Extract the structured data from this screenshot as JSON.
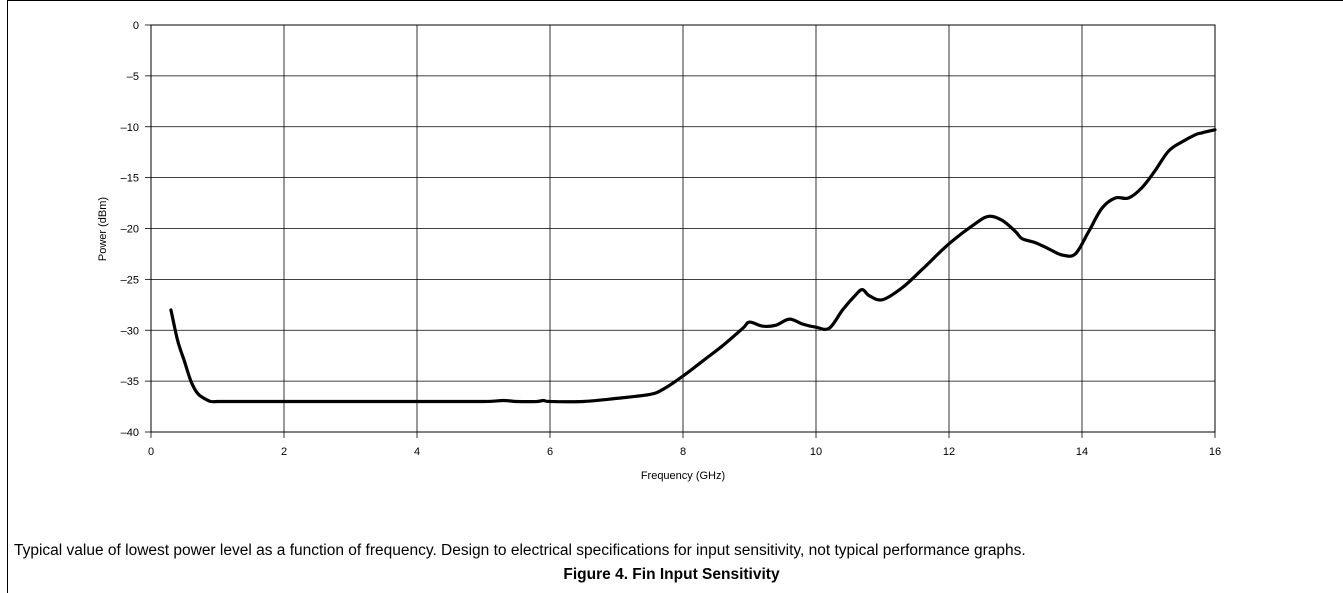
{
  "chart_data": {
    "type": "line",
    "xlabel": "Frequency (GHz)",
    "ylabel": "Power (dBm)",
    "xlim": [
      0,
      16
    ],
    "ylim": [
      -40,
      0
    ],
    "xticks": [
      0,
      2,
      4,
      6,
      8,
      10,
      12,
      14,
      16
    ],
    "yticks": [
      0,
      -5,
      -10,
      -15,
      -20,
      -25,
      -30,
      -35,
      -40
    ],
    "ytick_labels": [
      "0",
      "–5",
      "–10",
      "–15",
      "–20",
      "–25",
      "–30",
      "–35",
      "–40"
    ],
    "grid": true,
    "line_color": "#000000",
    "series": [
      {
        "x": [
          0.3,
          0.4,
          0.5,
          0.6,
          0.7,
          0.8,
          0.9,
          1.0,
          1.1,
          1.5,
          2,
          3,
          4,
          5,
          5.3,
          5.5,
          5.8,
          5.9,
          6.0,
          6.5,
          7.0,
          7.5,
          7.7,
          8.0,
          8.3,
          8.6,
          8.9,
          9.0,
          9.2,
          9.4,
          9.6,
          9.8,
          10.0,
          10.2,
          10.4,
          10.6,
          10.7,
          10.8,
          11.0,
          11.3,
          11.6,
          12.0,
          12.4,
          12.6,
          12.8,
          13.0,
          13.1,
          13.3,
          13.5,
          13.7,
          13.9,
          14.1,
          14.3,
          14.5,
          14.7,
          14.9,
          15.1,
          15.3,
          15.5,
          15.7,
          15.8,
          16.0
        ],
        "y": [
          -28,
          -31,
          -33,
          -35,
          -36.2,
          -36.7,
          -37.0,
          -37.0,
          -37.0,
          -37.0,
          -37.0,
          -37.0,
          -37.0,
          -37.0,
          -36.9,
          -37.0,
          -37.0,
          -36.9,
          -37.0,
          -37.0,
          -36.7,
          -36.3,
          -35.8,
          -34.5,
          -33.0,
          -31.5,
          -29.8,
          -29.2,
          -29.6,
          -29.5,
          -28.9,
          -29.4,
          -29.7,
          -29.8,
          -28.0,
          -26.5,
          -26.0,
          -26.6,
          -27.0,
          -25.8,
          -24.0,
          -21.5,
          -19.5,
          -18.8,
          -19.2,
          -20.3,
          -21.0,
          -21.4,
          -22.0,
          -22.6,
          -22.5,
          -20.3,
          -18.0,
          -17.0,
          -17.0,
          -16.0,
          -14.3,
          -12.4,
          -11.5,
          -10.8,
          -10.6,
          -10.3
        ]
      }
    ]
  },
  "caption": "Typical value of lowest power level as a function of frequency. Design to electrical specifications for input sensitivity, not typical performance graphs.",
  "figure_title": "Figure 4. Fin Input Sensitivity"
}
